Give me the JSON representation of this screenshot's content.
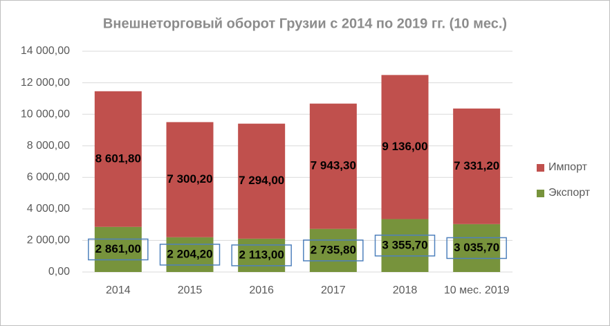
{
  "chart_data": {
    "type": "stacked_bar",
    "title": "Внешнеторговый оборот Грузии с 2014 по 2019 гг. (10 мес.)",
    "categories": [
      "2014",
      "2015",
      "2016",
      "2017",
      "2018",
      "10 мес. 2019"
    ],
    "series": [
      {
        "name": "Экспорт",
        "color": "#77933c",
        "values": [
          2861,
          2204.2,
          2113,
          2735.8,
          3355.7,
          3035.7
        ],
        "value_labels": [
          "2 861,00",
          "2 204,20",
          "2 113,00",
          "2 735,80",
          "3 355,70",
          "3 035,70"
        ]
      },
      {
        "name": "Импорт",
        "color": "#c0504d",
        "values": [
          8601.8,
          7300.2,
          7294,
          7943.3,
          9136,
          7331.2
        ],
        "value_labels": [
          "8 601,80",
          "7 300,20",
          "7 294,00",
          "7 943,30",
          "9 136,00",
          "7 331,20"
        ]
      }
    ],
    "ylim": [
      0,
      14000
    ],
    "yticks": [
      {
        "value": 0,
        "label": "0,00"
      },
      {
        "value": 2000,
        "label": "2 000,00"
      },
      {
        "value": 4000,
        "label": "4 000,00"
      },
      {
        "value": 6000,
        "label": "6 000,00"
      },
      {
        "value": 8000,
        "label": "8 000,00"
      },
      {
        "value": 10000,
        "label": "10 000,00"
      },
      {
        "value": 12000,
        "label": "12 000,00"
      },
      {
        "value": 14000,
        "label": "14 000,00"
      }
    ],
    "grid": true,
    "legend": "right"
  }
}
